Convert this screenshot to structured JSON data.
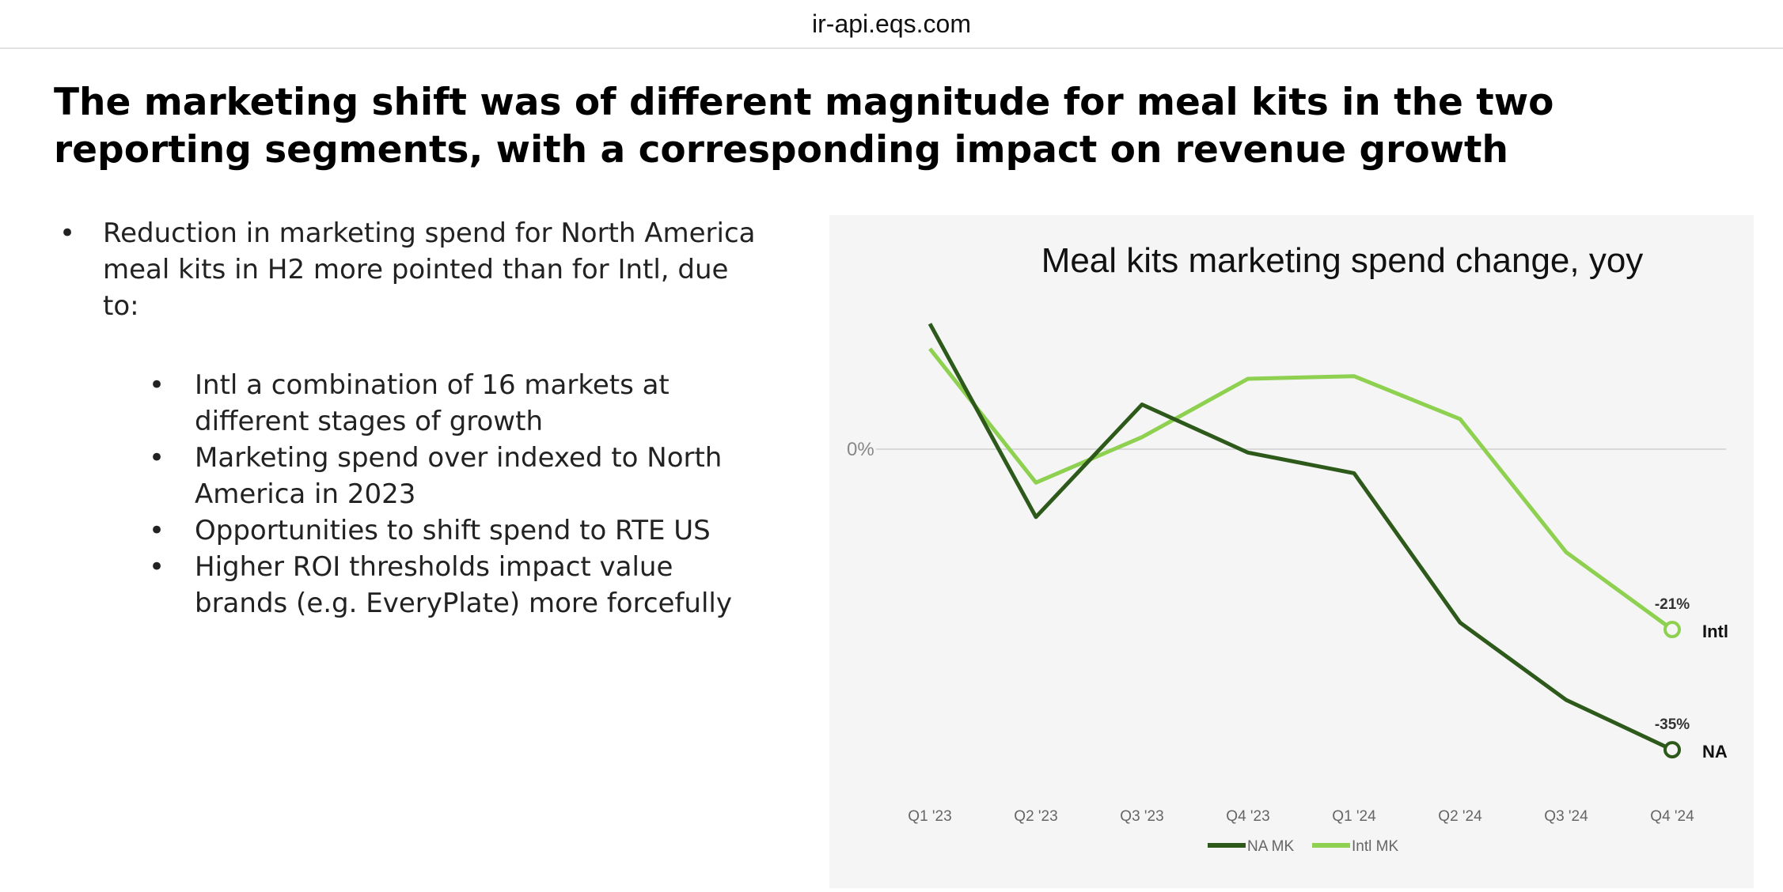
{
  "browser": {
    "url": "ir-api.eqs.com"
  },
  "slide": {
    "title": "The marketing shift was of different magnitude for meal kits in the two reporting segments, with a corresponding impact on revenue growth",
    "bullets": [
      {
        "text": "Reduction in marketing spend for North America meal kits in H2 more pointed than for Intl,  due to:",
        "level": 1
      },
      {
        "text": "Intl a combination of 16 markets at different stages of growth",
        "level": 2
      },
      {
        "text": "Marketing spend over indexed to North America in 2023",
        "level": 2
      },
      {
        "text": "Opportunities to shift spend to RTE US",
        "level": 2
      },
      {
        "text": "Higher ROI thresholds impact value brands (e.g. EveryPlate) more forcefully",
        "level": 2
      }
    ]
  },
  "chart_data": {
    "type": "line",
    "title": "Meal kits marketing spend change, yoy",
    "categories": [
      "Q1 '23",
      "Q2 '23",
      "Q3 '23",
      "Q4 '23",
      "Q1 '24",
      "Q2 '24",
      "Q3 '24",
      "Q4 '24"
    ],
    "y_tick_labels": [
      "0%"
    ],
    "ylim": [
      -40,
      18
    ],
    "grid": "zero line only",
    "legend": "bottom",
    "series": [
      {
        "name": "NA MK",
        "end_label": "NA",
        "end_value_label": "-35%",
        "color": "#2d5a1b",
        "values": [
          14.6,
          -7.9,
          5.2,
          -0.4,
          -2.8,
          -20.2,
          -29.2,
          -35
        ]
      },
      {
        "name": "Intl MK",
        "end_label": "Intl",
        "end_value_label": "-21%",
        "color": "#8ed04f",
        "values": [
          11.7,
          -3.9,
          1.4,
          8.2,
          8.5,
          3.5,
          -12.0,
          -21
        ]
      }
    ]
  }
}
